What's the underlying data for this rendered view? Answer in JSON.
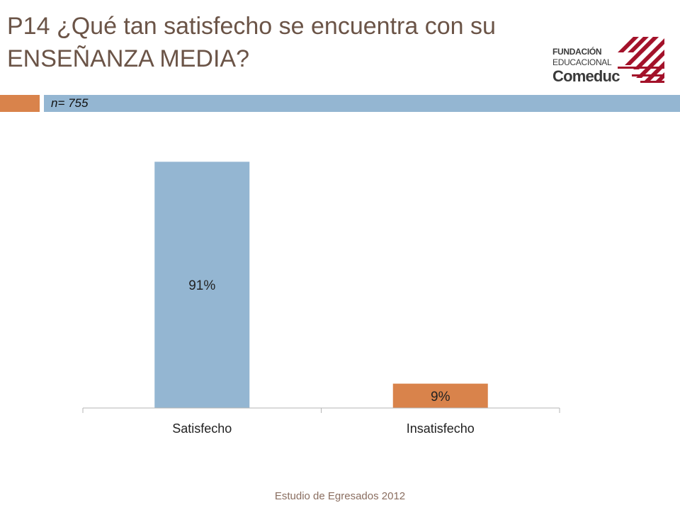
{
  "title": {
    "line1": "P14 ¿Qué tan satisfecho se encuentra con su",
    "line2": "ENSEÑANZA MEDIA?"
  },
  "logo": {
    "line1": "FUNDACIÓN",
    "line2": "EDUCACIONAL",
    "line3": "Comeduc",
    "accent_color": "#a3122a"
  },
  "sample_label": "n= 755",
  "footer": "Estudio de Egresados 2012",
  "chart_data": {
    "type": "bar",
    "categories": [
      "Satisfecho",
      "Insatisfecho"
    ],
    "values": [
      91,
      9
    ],
    "value_labels": [
      "91%",
      "9%"
    ],
    "colors": [
      "#94b6d2",
      "#d9834b"
    ],
    "ylim": [
      0,
      100
    ],
    "grid": false,
    "legend": "none"
  }
}
